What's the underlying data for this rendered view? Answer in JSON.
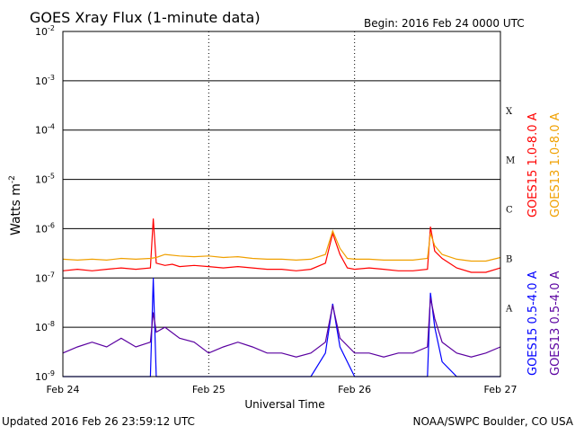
{
  "header": {
    "title": "GOES Xray Flux (1-minute data)",
    "begin": "Begin:  2016 Feb 24 0000 UTC"
  },
  "footer": {
    "updated": "Updated 2016 Feb 26 23:59:12 UTC",
    "credit": "NOAA/SWPC Boulder, CO USA"
  },
  "chart_data": {
    "type": "line",
    "title": "GOES Xray Flux (1-minute data)",
    "xlabel": "Universal Time",
    "ylabel_main": "Watts m",
    "ylabel_exp": "-2",
    "y_scale": "log",
    "ylim": [
      1e-09,
      0.01
    ],
    "xlim_days": [
      0,
      3
    ],
    "x_ticks": [
      {
        "day": 0,
        "label": "Feb 24"
      },
      {
        "day": 1,
        "label": "Feb 25"
      },
      {
        "day": 2,
        "label": "Feb 26"
      },
      {
        "day": 3,
        "label": "Feb 27"
      }
    ],
    "y_ticks": [
      {
        "value": 1e-09,
        "base": "10",
        "exp": "-9"
      },
      {
        "value": 1e-08,
        "base": "10",
        "exp": "-8"
      },
      {
        "value": 1e-07,
        "base": "10",
        "exp": "-7"
      },
      {
        "value": 1e-06,
        "base": "10",
        "exp": "-6"
      },
      {
        "value": 1e-05,
        "base": "10",
        "exp": "-5"
      },
      {
        "value": 0.0001,
        "base": "10",
        "exp": "-4"
      },
      {
        "value": 0.001,
        "base": "10",
        "exp": "-3"
      },
      {
        "value": 0.01,
        "base": "10",
        "exp": "-2"
      }
    ],
    "flare_classes": [
      {
        "label": "X",
        "value": 0.00025
      },
      {
        "label": "M",
        "value": 2.5e-05
      },
      {
        "label": "C",
        "value": 2.5e-06
      },
      {
        "label": "B",
        "value": 2.5e-07
      },
      {
        "label": "A",
        "value": 2.5e-08
      }
    ],
    "grid": true,
    "legend_position": "right",
    "series": [
      {
        "name": "GOES15 1.0-8.0 A",
        "color": "#ff0000",
        "x_days": [
          0,
          0.1,
          0.2,
          0.3,
          0.4,
          0.5,
          0.6,
          0.62,
          0.64,
          0.7,
          0.75,
          0.8,
          0.9,
          1.0,
          1.1,
          1.2,
          1.3,
          1.4,
          1.5,
          1.6,
          1.7,
          1.8,
          1.85,
          1.9,
          1.95,
          2.0,
          2.1,
          2.2,
          2.3,
          2.4,
          2.5,
          2.52,
          2.55,
          2.6,
          2.7,
          2.8,
          2.9,
          3.0
        ],
        "y": [
          1.4e-07,
          1.5e-07,
          1.4e-07,
          1.5e-07,
          1.6e-07,
          1.5e-07,
          1.6e-07,
          1.6e-06,
          2e-07,
          1.8e-07,
          1.9e-07,
          1.7e-07,
          1.8e-07,
          1.7e-07,
          1.6e-07,
          1.7e-07,
          1.6e-07,
          1.5e-07,
          1.5e-07,
          1.4e-07,
          1.5e-07,
          2e-07,
          8e-07,
          3e-07,
          1.6e-07,
          1.5e-07,
          1.6e-07,
          1.5e-07,
          1.4e-07,
          1.4e-07,
          1.5e-07,
          1.1e-06,
          3.5e-07,
          2.5e-07,
          1.6e-07,
          1.3e-07,
          1.3e-07,
          1.6e-07
        ]
      },
      {
        "name": "GOES13 1.0-8.0 A",
        "color": "#f0a000",
        "x_days": [
          0,
          0.1,
          0.2,
          0.3,
          0.4,
          0.5,
          0.6,
          0.64,
          0.7,
          0.8,
          0.9,
          1.0,
          1.1,
          1.2,
          1.3,
          1.4,
          1.5,
          1.6,
          1.7,
          1.8,
          1.85,
          1.9,
          1.95,
          2.0,
          2.1,
          2.2,
          2.3,
          2.4,
          2.5,
          2.52,
          2.55,
          2.6,
          2.7,
          2.8,
          2.9,
          3.0
        ],
        "y": [
          2.4e-07,
          2.3e-07,
          2.4e-07,
          2.3e-07,
          2.5e-07,
          2.4e-07,
          2.5e-07,
          2.6e-07,
          3e-07,
          2.8e-07,
          2.7e-07,
          2.8e-07,
          2.6e-07,
          2.7e-07,
          2.5e-07,
          2.4e-07,
          2.4e-07,
          2.3e-07,
          2.4e-07,
          3e-07,
          9e-07,
          4e-07,
          2.5e-07,
          2.4e-07,
          2.4e-07,
          2.3e-07,
          2.3e-07,
          2.3e-07,
          2.5e-07,
          8e-07,
          4.5e-07,
          3e-07,
          2.4e-07,
          2.2e-07,
          2.2e-07,
          2.6e-07
        ]
      },
      {
        "name": "GOES15 0.5-4.0 A",
        "color": "#0000ff",
        "x_days": [
          0,
          0.1,
          0.2,
          0.3,
          0.4,
          0.45,
          0.5,
          0.55,
          0.6,
          0.62,
          0.64,
          0.7,
          0.8,
          0.9,
          1.0,
          1.1,
          1.2,
          1.3,
          1.4,
          1.5,
          1.6,
          1.7,
          1.8,
          1.85,
          1.9,
          2.0,
          2.1,
          2.2,
          2.3,
          2.4,
          2.5,
          2.52,
          2.55,
          2.6,
          2.7,
          2.8,
          2.9,
          3.0
        ],
        "y": [
          1e-09,
          1e-09,
          1e-09,
          1e-09,
          1e-09,
          1e-09,
          1e-09,
          1e-09,
          1e-09,
          1e-07,
          1e-09,
          1e-09,
          1e-09,
          1e-09,
          1e-09,
          1e-09,
          1e-09,
          1e-09,
          1e-09,
          1e-09,
          1e-09,
          1e-09,
          3e-09,
          3e-08,
          4e-09,
          1e-09,
          1e-09,
          1e-09,
          1e-09,
          1e-09,
          1e-09,
          5e-08,
          1e-08,
          2e-09,
          1e-09,
          1e-09,
          1e-09,
          1e-09
        ]
      },
      {
        "name": "GOES13 0.5-4.0 A",
        "color": "#5a00a0",
        "x_days": [
          0,
          0.1,
          0.2,
          0.3,
          0.4,
          0.5,
          0.6,
          0.62,
          0.64,
          0.7,
          0.8,
          0.9,
          1.0,
          1.1,
          1.2,
          1.3,
          1.4,
          1.5,
          1.6,
          1.7,
          1.8,
          1.85,
          1.9,
          2.0,
          2.1,
          2.2,
          2.3,
          2.4,
          2.5,
          2.52,
          2.55,
          2.6,
          2.7,
          2.8,
          2.9,
          3.0
        ],
        "y": [
          3e-09,
          4e-09,
          5e-09,
          4e-09,
          6e-09,
          4e-09,
          5e-09,
          2e-08,
          8e-09,
          1e-08,
          6e-09,
          5e-09,
          3e-09,
          4e-09,
          5e-09,
          4e-09,
          3e-09,
          3e-09,
          2.5e-09,
          3e-09,
          5e-09,
          2.8e-08,
          6e-09,
          3e-09,
          3e-09,
          2.5e-09,
          3e-09,
          3e-09,
          4e-09,
          4e-08,
          1.5e-08,
          5e-09,
          3e-09,
          2.5e-09,
          3e-09,
          4e-09
        ]
      }
    ]
  }
}
